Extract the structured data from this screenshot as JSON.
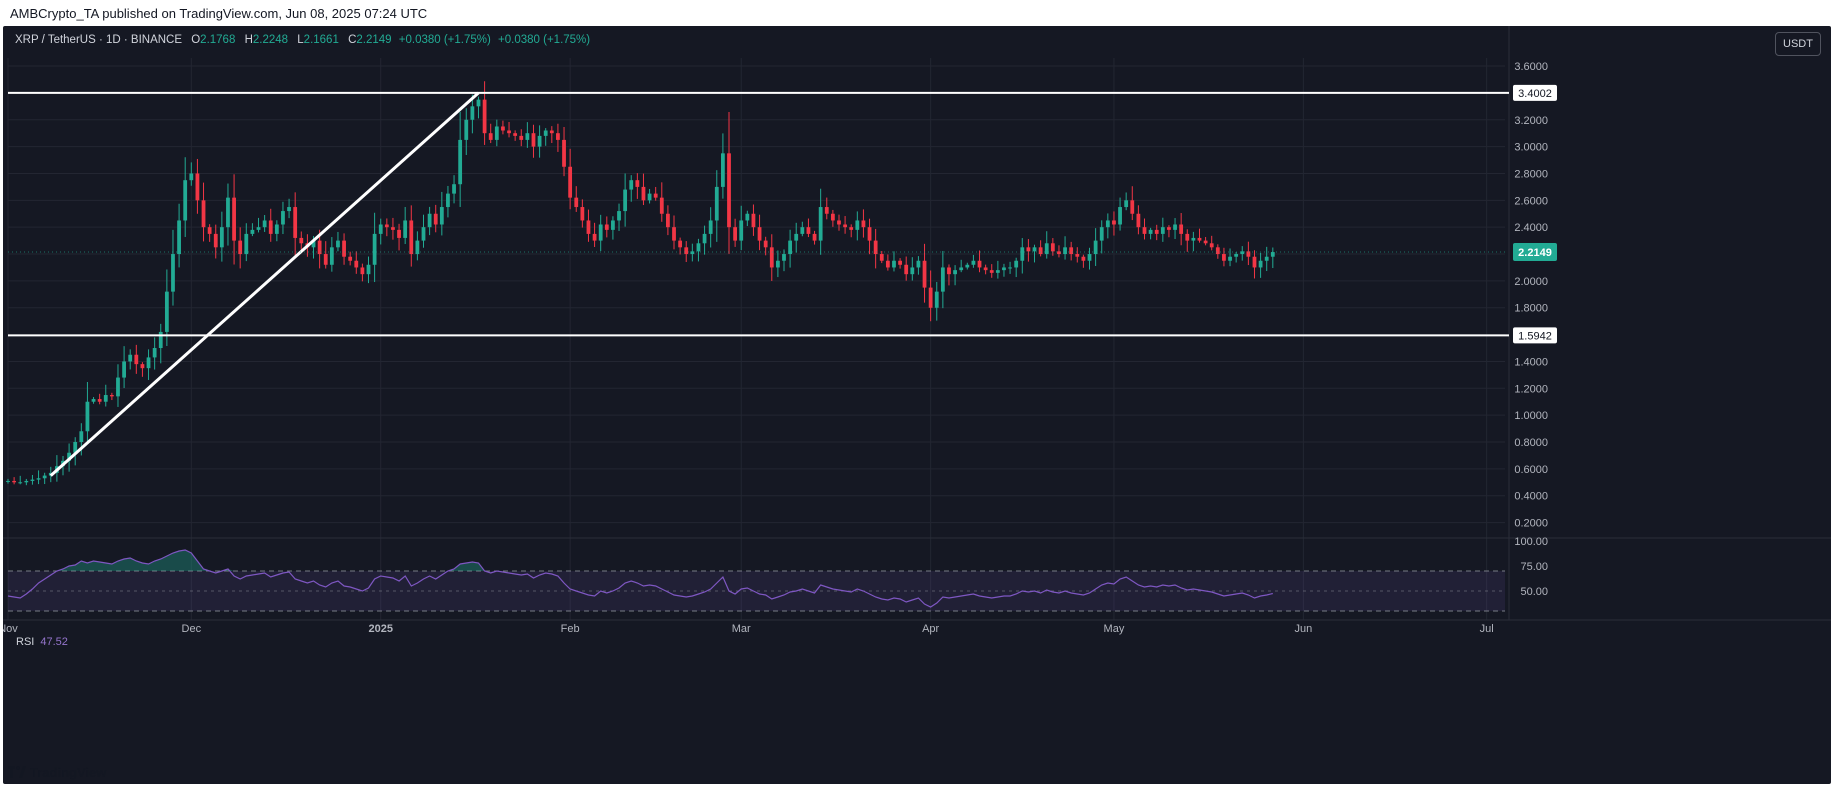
{
  "header": {
    "publisher": "AMBCrypto_TA published on TradingView.com, Jun 08, 2025 07:24 UTC"
  },
  "symbol": {
    "name": "XRP / TetherUS · 1D · BINANCE",
    "o_label": "O",
    "o": "2.1768",
    "h_label": "H",
    "h": "2.2248",
    "l_label": "L",
    "l": "2.1661",
    "c_label": "C",
    "c": "2.2149",
    "change": "+0.0380 (+1.75%)",
    "change2": "+0.0380 (+1.75%)"
  },
  "currency_button": "USDT",
  "rsi": {
    "label": "RSI",
    "value": "47.52"
  },
  "brand": {
    "name": "TradingView"
  },
  "colors": {
    "up": "#22ab94",
    "down": "#f23645",
    "background": "#151823",
    "rsi": "#7e57c2",
    "line": "#ffffff"
  },
  "chart_data": {
    "type": "candlestick",
    "title": "XRP / TetherUS · 1D · BINANCE",
    "price_axis": {
      "min": 0.1,
      "max": 3.66,
      "ticks": [
        "3.6000",
        "3.4000",
        "3.2000",
        "3.0000",
        "2.8000",
        "2.6000",
        "2.4000",
        "2.2000",
        "2.0000",
        "1.8000",
        "1.6000",
        "1.4000",
        "1.2000",
        "1.0000",
        "0.8000",
        "0.6000",
        "0.4000",
        "0.2000"
      ]
    },
    "time_axis": {
      "start_day": 0,
      "end_day": 245,
      "labels": [
        {
          "label": "Nov",
          "day": 0
        },
        {
          "label": "Dec",
          "day": 30
        },
        {
          "label": "2025",
          "day": 61
        },
        {
          "label": "Feb",
          "day": 92
        },
        {
          "label": "Mar",
          "day": 120
        },
        {
          "label": "Apr",
          "day": 151
        },
        {
          "label": "May",
          "day": 181
        },
        {
          "label": "Jun",
          "day": 212
        },
        {
          "label": "Jul",
          "day": 242
        }
      ]
    },
    "horizontal_levels": [
      {
        "label": "3.4002",
        "value": 3.4002
      },
      {
        "label": "1.5942",
        "value": 1.5942
      }
    ],
    "trendline": {
      "from": {
        "day": 7,
        "price": 0.55
      },
      "to": {
        "day": 77,
        "price": 3.4
      }
    },
    "last_price": {
      "label": "2.2149",
      "value": 2.2149
    },
    "closes": [
      0.51,
      0.5,
      0.5,
      0.51,
      0.52,
      0.53,
      0.55,
      0.57,
      0.62,
      0.66,
      0.72,
      0.8,
      0.88,
      1.1,
      1.12,
      1.1,
      1.15,
      1.14,
      1.28,
      1.4,
      1.45,
      1.38,
      1.35,
      1.43,
      1.5,
      1.62,
      1.92,
      2.2,
      2.45,
      2.75,
      2.8,
      2.6,
      2.4,
      2.35,
      2.25,
      2.4,
      2.62,
      2.3,
      2.2,
      2.35,
      2.38,
      2.4,
      2.45,
      2.35,
      2.42,
      2.52,
      2.55,
      2.32,
      2.28,
      2.25,
      2.3,
      2.2,
      2.12,
      2.25,
      2.3,
      2.18,
      2.15,
      2.1,
      2.05,
      2.12,
      2.35,
      2.42,
      2.4,
      2.38,
      2.32,
      2.45,
      2.2,
      2.3,
      2.4,
      2.5,
      2.42,
      2.55,
      2.65,
      2.72,
      3.05,
      3.2,
      3.3,
      3.35,
      3.1,
      3.05,
      3.15,
      3.12,
      3.1,
      3.08,
      3.05,
      3.1,
      3.0,
      3.08,
      3.12,
      3.1,
      3.05,
      2.85,
      2.62,
      2.55,
      2.45,
      2.35,
      2.3,
      2.42,
      2.38,
      2.45,
      2.52,
      2.68,
      2.75,
      2.7,
      2.6,
      2.65,
      2.62,
      2.5,
      2.4,
      2.3,
      2.25,
      2.2,
      2.22,
      2.28,
      2.35,
      2.45,
      2.7,
      2.95,
      2.4,
      2.3,
      2.45,
      2.5,
      2.4,
      2.3,
      2.25,
      2.1,
      2.15,
      2.2,
      2.3,
      2.35,
      2.4,
      2.35,
      2.3,
      2.55,
      2.5,
      2.45,
      2.42,
      2.4,
      2.38,
      2.45,
      2.4,
      2.3,
      2.2,
      2.15,
      2.1,
      2.15,
      2.12,
      2.05,
      2.1,
      2.15,
      1.95,
      1.8,
      1.92,
      2.1,
      2.05,
      2.08,
      2.1,
      2.12,
      2.15,
      2.1,
      2.08,
      2.06,
      2.08,
      2.1,
      2.1,
      2.15,
      2.25,
      2.22,
      2.25,
      2.2,
      2.28,
      2.22,
      2.2,
      2.25,
      2.2,
      2.18,
      2.15,
      2.2,
      2.3,
      2.4,
      2.45,
      2.42,
      2.55,
      2.6,
      2.5,
      2.4,
      2.35,
      2.38,
      2.35,
      2.4,
      2.38,
      2.42,
      2.35,
      2.3,
      2.32,
      2.3,
      2.28,
      2.25,
      2.2,
      2.15,
      2.18,
      2.2,
      2.22,
      2.18,
      2.1,
      2.15,
      2.18,
      2.2149
    ],
    "rsi_values": [
      45,
      44,
      43,
      47,
      52,
      58,
      62,
      66,
      70,
      72,
      75,
      76,
      80,
      78,
      80,
      79,
      78,
      77,
      80,
      82,
      83,
      80,
      78,
      77,
      80,
      82,
      85,
      88,
      90,
      91,
      88,
      80,
      72,
      70,
      68,
      70,
      72,
      65,
      62,
      65,
      66,
      67,
      68,
      64,
      66,
      68,
      69,
      62,
      60,
      58,
      60,
      56,
      54,
      58,
      60,
      55,
      54,
      52,
      50,
      53,
      62,
      65,
      64,
      63,
      60,
      65,
      55,
      58,
      62,
      65,
      62,
      66,
      70,
      72,
      77,
      78,
      79,
      78,
      70,
      68,
      70,
      69,
      68,
      67,
      66,
      67,
      63,
      66,
      68,
      67,
      65,
      58,
      52,
      50,
      48,
      46,
      45,
      50,
      48,
      50,
      53,
      58,
      60,
      58,
      55,
      56,
      55,
      52,
      49,
      46,
      45,
      44,
      45,
      47,
      49,
      52,
      58,
      64,
      50,
      47,
      52,
      53,
      50,
      47,
      46,
      42,
      44,
      46,
      49,
      50,
      52,
      50,
      48,
      56,
      54,
      52,
      51,
      50,
      49,
      52,
      50,
      47,
      44,
      42,
      41,
      43,
      42,
      39,
      41,
      43,
      37,
      34,
      38,
      44,
      43,
      44,
      45,
      46,
      47,
      45,
      44,
      43,
      44,
      45,
      45,
      47,
      50,
      49,
      50,
      48,
      51,
      49,
      48,
      50,
      48,
      47,
      46,
      48,
      52,
      56,
      58,
      57,
      62,
      64,
      60,
      56,
      54,
      55,
      54,
      56,
      55,
      56,
      53,
      51,
      52,
      51,
      50,
      49,
      47,
      45,
      46,
      47,
      48,
      46,
      43,
      45,
      46,
      47.52
    ],
    "rsi_axis": {
      "min": 25,
      "max": 100,
      "ticks": [
        "100.00",
        "75.00",
        "50.00"
      ],
      "bands": [
        70,
        30
      ]
    }
  }
}
